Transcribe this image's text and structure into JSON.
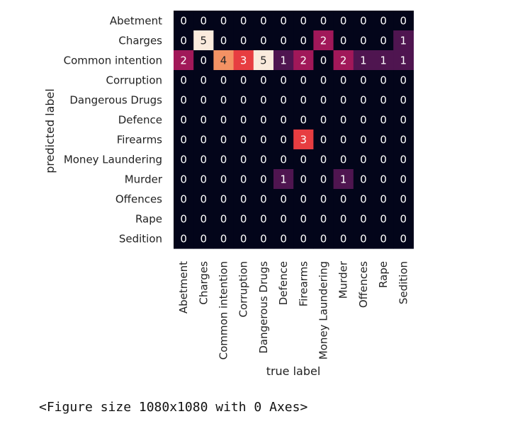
{
  "chart_data": {
    "type": "heatmap",
    "xlabel": "true label",
    "ylabel": "predicted label",
    "x_categories": [
      "Abetment",
      "Charges",
      "Common intention",
      "Corruption",
      "Dangerous Drugs",
      "Defence",
      "Firearms",
      "Money Laundering",
      "Murder",
      "Offences",
      "Rape",
      "Sedition"
    ],
    "y_categories": [
      "Abetment",
      "Charges",
      "Common intention",
      "Corruption",
      "Dangerous Drugs",
      "Defence",
      "Firearms",
      "Money Laundering",
      "Murder",
      "Offences",
      "Rape",
      "Sedition"
    ],
    "values": [
      [
        0,
        0,
        0,
        0,
        0,
        0,
        0,
        0,
        0,
        0,
        0,
        0
      ],
      [
        0,
        5,
        0,
        0,
        0,
        0,
        0,
        2,
        0,
        0,
        0,
        1
      ],
      [
        2,
        0,
        4,
        3,
        5,
        1,
        2,
        0,
        2,
        1,
        1,
        1
      ],
      [
        0,
        0,
        0,
        0,
        0,
        0,
        0,
        0,
        0,
        0,
        0,
        0
      ],
      [
        0,
        0,
        0,
        0,
        0,
        0,
        0,
        0,
        0,
        0,
        0,
        0
      ],
      [
        0,
        0,
        0,
        0,
        0,
        0,
        0,
        0,
        0,
        0,
        0,
        0
      ],
      [
        0,
        0,
        0,
        0,
        0,
        0,
        3,
        0,
        0,
        0,
        0,
        0
      ],
      [
        0,
        0,
        0,
        0,
        0,
        0,
        0,
        0,
        0,
        0,
        0,
        0
      ],
      [
        0,
        0,
        0,
        0,
        0,
        1,
        0,
        0,
        1,
        0,
        0,
        0
      ],
      [
        0,
        0,
        0,
        0,
        0,
        0,
        0,
        0,
        0,
        0,
        0,
        0
      ],
      [
        0,
        0,
        0,
        0,
        0,
        0,
        0,
        0,
        0,
        0,
        0,
        0
      ],
      [
        0,
        0,
        0,
        0,
        0,
        0,
        0,
        0,
        0,
        0,
        0,
        0
      ]
    ],
    "vmin": 0,
    "vmax": 5,
    "colormap": "rocket",
    "colorbar": false,
    "grid": false
  },
  "output": {
    "caption": "<Figure size 1080x1080 with 0 Axes>"
  }
}
